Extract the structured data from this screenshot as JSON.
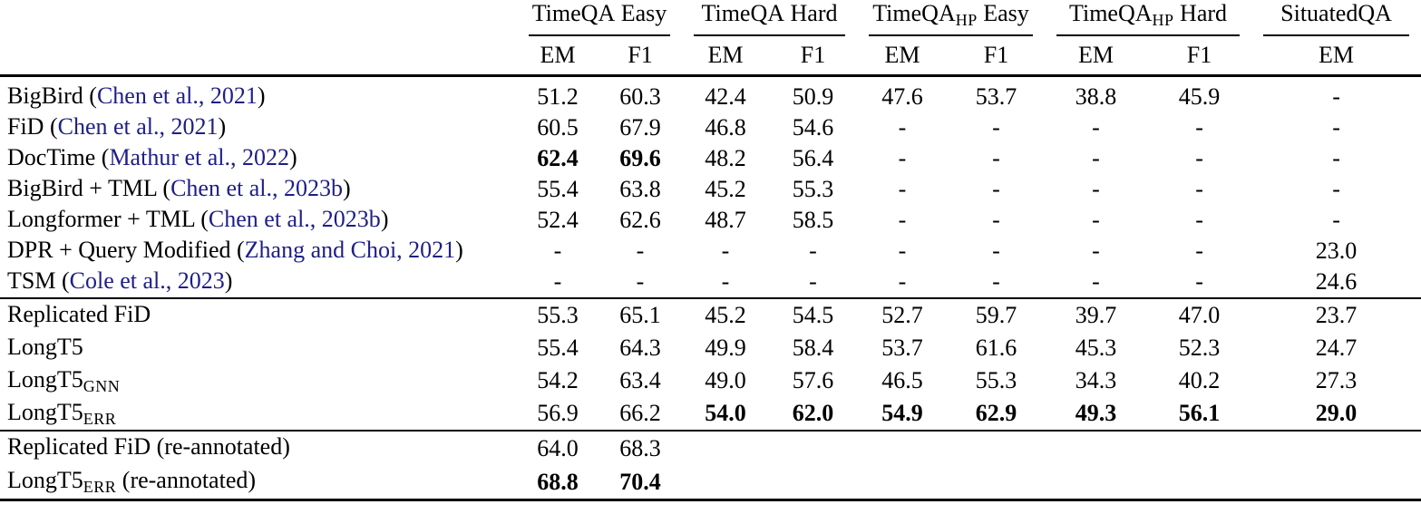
{
  "colors": {
    "citation_link": "#1e1e87",
    "text": "#000000",
    "background": "#ffffff"
  },
  "header": {
    "groups": [
      {
        "main": "TimeQA",
        "sub": "",
        "tail": " Easy"
      },
      {
        "main": "TimeQA",
        "sub": "",
        "tail": " Hard"
      },
      {
        "main": "TimeQA",
        "sub": "HP",
        "tail": " Easy"
      },
      {
        "main": "TimeQA",
        "sub": "HP",
        "tail": " Hard"
      },
      {
        "main": "SituatedQA",
        "sub": "",
        "tail": ""
      }
    ],
    "sub_labels": [
      "EM",
      "F1",
      "EM",
      "F1",
      "EM",
      "F1",
      "EM",
      "F1",
      "EM"
    ]
  },
  "sections": [
    {
      "name": "published-baselines",
      "rows": [
        {
          "label": {
            "main": "BigBird (",
            "sub": "",
            "cite": "Chen et al., 2021",
            "tail": ")"
          },
          "values": [
            "51.2",
            "60.3",
            "42.4",
            "50.9",
            "47.6",
            "53.7",
            "38.8",
            "45.9",
            "-"
          ],
          "bold": []
        },
        {
          "label": {
            "main": "FiD (",
            "sub": "",
            "cite": "Chen et al., 2021",
            "tail": ")"
          },
          "values": [
            "60.5",
            "67.9",
            "46.8",
            "54.6",
            "-",
            "-",
            "-",
            "-",
            "-"
          ],
          "bold": []
        },
        {
          "label": {
            "main": "DocTime (",
            "sub": "",
            "cite": "Mathur et al., 2022",
            "tail": ")"
          },
          "values": [
            "62.4",
            "69.6",
            "48.2",
            "56.4",
            "-",
            "-",
            "-",
            "-",
            "-"
          ],
          "bold": [
            0,
            1
          ]
        },
        {
          "label": {
            "main": "BigBird + TML (",
            "sub": "",
            "cite": "Chen et al., 2023b",
            "tail": ")"
          },
          "values": [
            "55.4",
            "63.8",
            "45.2",
            "55.3",
            "-",
            "-",
            "-",
            "-",
            "-"
          ],
          "bold": []
        },
        {
          "label": {
            "main": "Longformer + TML (",
            "sub": "",
            "cite": "Chen et al., 2023b",
            "tail": ")"
          },
          "values": [
            "52.4",
            "62.6",
            "48.7",
            "58.5",
            "-",
            "-",
            "-",
            "-",
            "-"
          ],
          "bold": []
        },
        {
          "label": {
            "main": "DPR + Query Modified (",
            "sub": "",
            "cite": "Zhang and Choi, 2021",
            "tail": ")"
          },
          "values": [
            "-",
            "-",
            "-",
            "-",
            "-",
            "-",
            "-",
            "-",
            "23.0"
          ],
          "bold": []
        },
        {
          "label": {
            "main": "TSM (",
            "sub": "",
            "cite": "Cole et al., 2023",
            "tail": ")"
          },
          "values": [
            "-",
            "-",
            "-",
            "-",
            "-",
            "-",
            "-",
            "-",
            "24.6"
          ],
          "bold": []
        }
      ]
    },
    {
      "name": "our-models",
      "rows": [
        {
          "label": {
            "main": "Replicated FiD",
            "sub": "",
            "cite": "",
            "tail": ""
          },
          "values": [
            "55.3",
            "65.1",
            "45.2",
            "54.5",
            "52.7",
            "59.7",
            "39.7",
            "47.0",
            "23.7"
          ],
          "bold": []
        },
        {
          "label": {
            "main": "LongT5",
            "sub": "",
            "cite": "",
            "tail": ""
          },
          "values": [
            "55.4",
            "64.3",
            "49.9",
            "58.4",
            "53.7",
            "61.6",
            "45.3",
            "52.3",
            "24.7"
          ],
          "bold": []
        },
        {
          "label": {
            "main": "LongT5",
            "sub": "GNN",
            "cite": "",
            "tail": ""
          },
          "values": [
            "54.2",
            "63.4",
            "49.0",
            "57.6",
            "46.5",
            "55.3",
            "34.3",
            "40.2",
            "27.3"
          ],
          "bold": []
        },
        {
          "label": {
            "main": "LongT5",
            "sub": "ERR",
            "cite": "",
            "tail": ""
          },
          "values": [
            "56.9",
            "66.2",
            "54.0",
            "62.0",
            "54.9",
            "62.9",
            "49.3",
            "56.1",
            "29.0"
          ],
          "bold": [
            2,
            3,
            4,
            5,
            6,
            7,
            8
          ]
        }
      ]
    },
    {
      "name": "re-annotated",
      "rows": [
        {
          "label": {
            "main": "Replicated FiD (re-annotated)",
            "sub": "",
            "cite": "",
            "tail": ""
          },
          "values": [
            "64.0",
            "68.3",
            "",
            "",
            "",
            "",
            "",
            "",
            ""
          ],
          "bold": []
        },
        {
          "label": {
            "main": "LongT5",
            "sub": "ERR",
            "cite": "",
            "tail": " (re-annotated)"
          },
          "values": [
            "68.8",
            "70.4",
            "",
            "",
            "",
            "",
            "",
            "",
            ""
          ],
          "bold": [
            0,
            1
          ]
        }
      ]
    }
  ]
}
